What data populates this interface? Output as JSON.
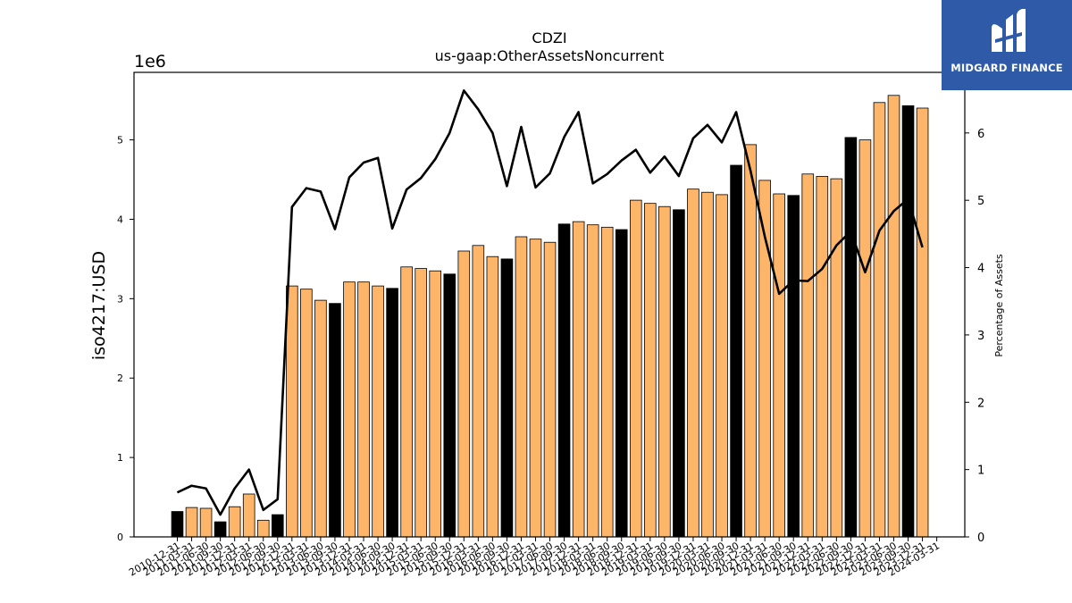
{
  "chart_data": {
    "type": "bar",
    "title": "CDZI",
    "subtitle": "us-gaap:OtherAssetsNoncurrent",
    "ylabel": "iso4217:USD",
    "y_multiplier_label": "1e6",
    "y2label": "Percentage of Assets",
    "ylim": [
      0,
      5.85
    ],
    "y2lim": [
      0,
      6.9
    ],
    "yticks": [
      0,
      1,
      2,
      3,
      4,
      5
    ],
    "y2ticks": [
      0,
      1,
      2,
      3,
      4,
      5,
      6
    ],
    "categories": [
      "2010-12-31",
      "2011-03-31",
      "2011-06-30",
      "2011-09-30",
      "2011-12-31",
      "2012-03-31",
      "2012-06-30",
      "2012-09-30",
      "2012-12-31",
      "2013-03-31",
      "2013-06-30",
      "2013-09-30",
      "2013-12-31",
      "2014-03-31",
      "2014-06-30",
      "2014-09-30",
      "2014-12-31",
      "2015-03-31",
      "2015-06-30",
      "2015-09-30",
      "2015-12-31",
      "2016-03-31",
      "2016-06-30",
      "2016-09-30",
      "2016-12-31",
      "2017-03-31",
      "2017-06-30",
      "2017-09-30",
      "2017-12-31",
      "2018-03-31",
      "2018-06-30",
      "2018-09-30",
      "2018-12-31",
      "2019-03-31",
      "2019-06-30",
      "2019-09-30",
      "2019-12-31",
      "2020-03-31",
      "2020-06-30",
      "2020-09-30",
      "2020-12-31",
      "2021-03-31",
      "2021-06-30",
      "2021-09-30",
      "2021-12-31",
      "2022-03-31",
      "2022-06-30",
      "2022-09-30",
      "2022-12-31",
      "2023-03-31",
      "2023-06-30",
      "2023-09-30",
      "2023-12-31",
      "2024-03-31"
    ],
    "series": [
      {
        "values": [
          0.32,
          0.37,
          0.36,
          0.19,
          0.38,
          0.54,
          0.21,
          0.28,
          3.16,
          3.12,
          2.98,
          2.94,
          3.21,
          3.21,
          3.16,
          3.13,
          3.4,
          3.38,
          3.35,
          3.31,
          3.6,
          3.67,
          3.53,
          3.5,
          3.78,
          3.75,
          3.71,
          3.94,
          3.97,
          3.93,
          3.9,
          3.87,
          4.24,
          4.2,
          4.16,
          4.12,
          4.38,
          4.34,
          4.31,
          4.68,
          4.94,
          4.49,
          4.32,
          4.3,
          4.57,
          4.54,
          4.51,
          5.03,
          5.0,
          5.47,
          5.56,
          5.43,
          5.4,
          null
        ],
        "highlight": [
          true,
          false,
          false,
          true,
          false,
          false,
          false,
          true,
          false,
          false,
          false,
          true,
          false,
          false,
          false,
          true,
          false,
          false,
          false,
          true,
          false,
          false,
          false,
          true,
          false,
          false,
          false,
          true,
          false,
          false,
          false,
          true,
          false,
          false,
          false,
          true,
          false,
          false,
          false,
          true,
          false,
          false,
          false,
          true,
          false,
          false,
          false,
          true,
          false,
          false,
          false,
          true,
          false,
          null
        ]
      },
      {
        "axis": "right",
        "type": "line",
        "values": [
          0.66,
          0.76,
          0.72,
          0.33,
          0.72,
          1.0,
          0.4,
          0.56,
          4.9,
          5.18,
          5.13,
          4.57,
          5.34,
          5.56,
          5.63,
          4.58,
          5.16,
          5.33,
          5.61,
          6.0,
          6.63,
          6.35,
          6.0,
          5.21,
          6.09,
          5.19,
          5.4,
          5.94,
          6.31,
          5.25,
          5.39,
          5.59,
          5.75,
          5.41,
          5.65,
          5.36,
          5.92,
          6.12,
          5.86,
          6.31,
          5.44,
          4.46,
          3.61,
          3.81,
          3.8,
          3.98,
          4.33,
          4.54,
          3.93,
          4.55,
          4.84,
          5.02,
          4.3,
          null
        ]
      }
    ],
    "colors": {
      "bar": "#fdb56a",
      "bar_highlight": "#000000",
      "line": "#000000"
    }
  },
  "logo": {
    "text": "MIDGARD FINANCE",
    "bg": "#2f5aa8"
  }
}
